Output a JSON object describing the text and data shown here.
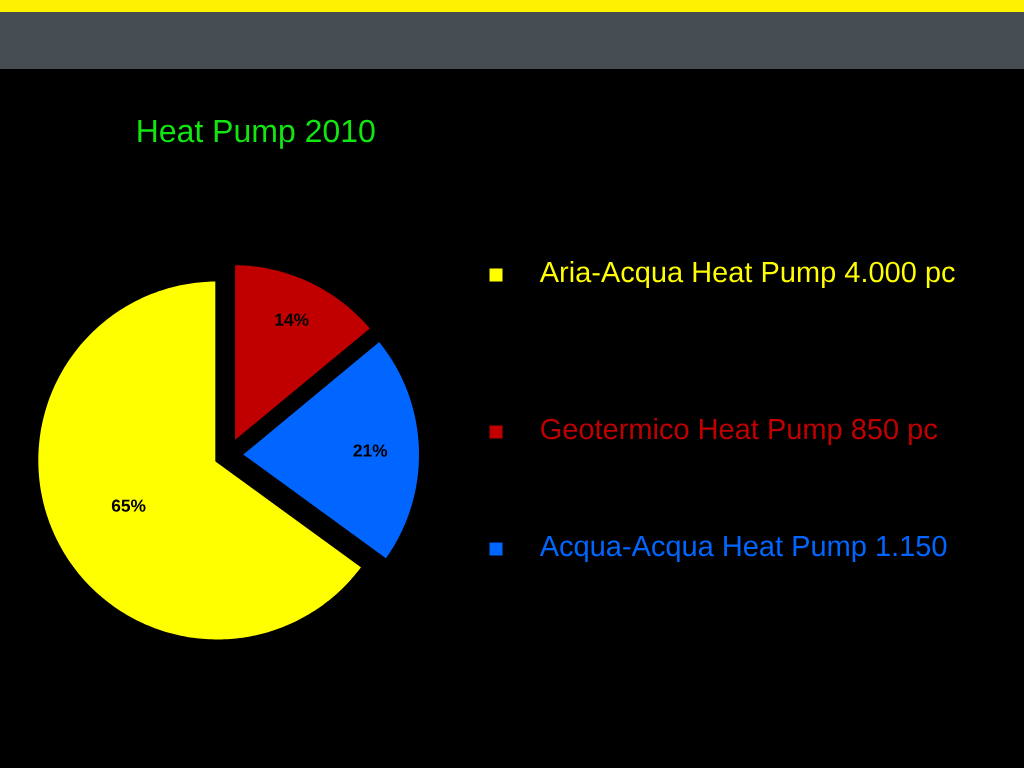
{
  "chart_data": {
    "type": "pie",
    "title": "Heat Pump 2010",
    "categories": [
      "Aria-Acqua Heat Pump 4.000 pc",
      "Geotermico Heat Pump 850 pc",
      "Acqua-Acqua Heat Pump 1.150"
    ],
    "values": [
      65,
      14,
      21
    ],
    "colors": [
      "#ffff00",
      "#c00000",
      "#0066ff"
    ],
    "value_labels": [
      "65%",
      "14%",
      "21%"
    ],
    "legend": "right"
  }
}
